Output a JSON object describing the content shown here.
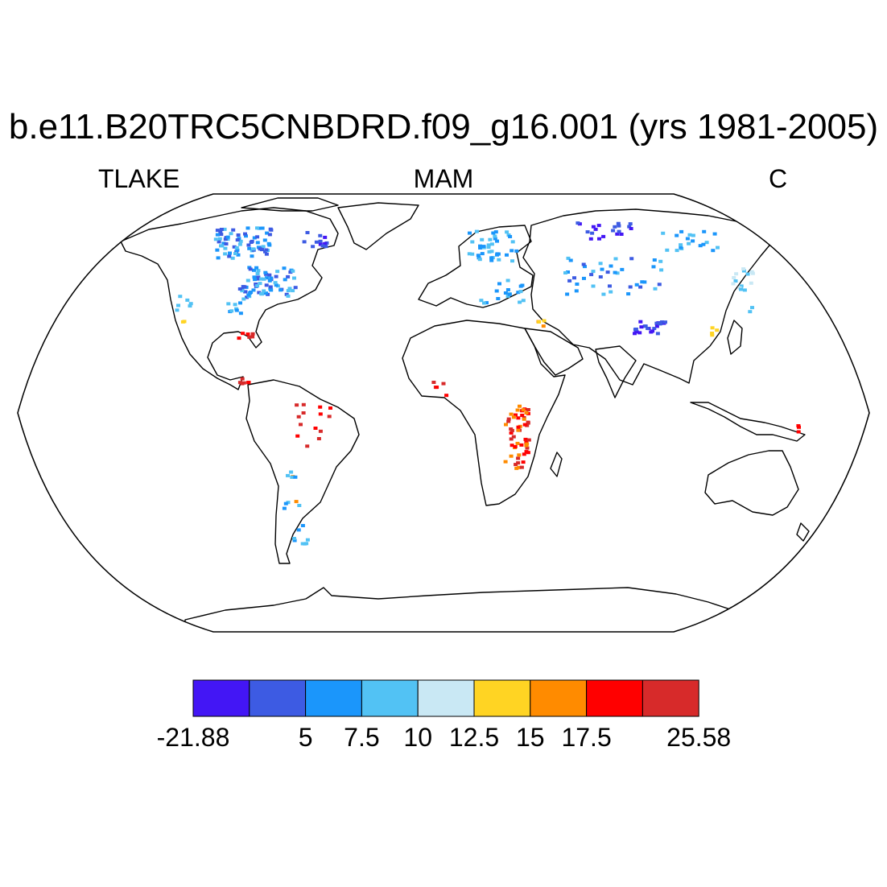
{
  "title": "b.e11.B20TRC5CNBDRD.f09_g16.001 (yrs 1981-2005)",
  "subtitles": {
    "left": "TLAKE",
    "center": "MAM",
    "right": "C"
  },
  "map": {
    "projection": "robinson",
    "land_outline_color": "#000000",
    "ocean_color": "#ffffff"
  },
  "colorbar": {
    "colors": [
      "#4316f5",
      "#3d5be3",
      "#1b96fb",
      "#52c2f4",
      "#c9e8f4",
      "#ffd423",
      "#ff8b00",
      "#ff0000",
      "#d72a2a"
    ],
    "labels": [
      "-21.88",
      "",
      "5",
      "7.5",
      "10",
      "12.5",
      "15",
      "17.5",
      "",
      "25.58"
    ]
  }
}
